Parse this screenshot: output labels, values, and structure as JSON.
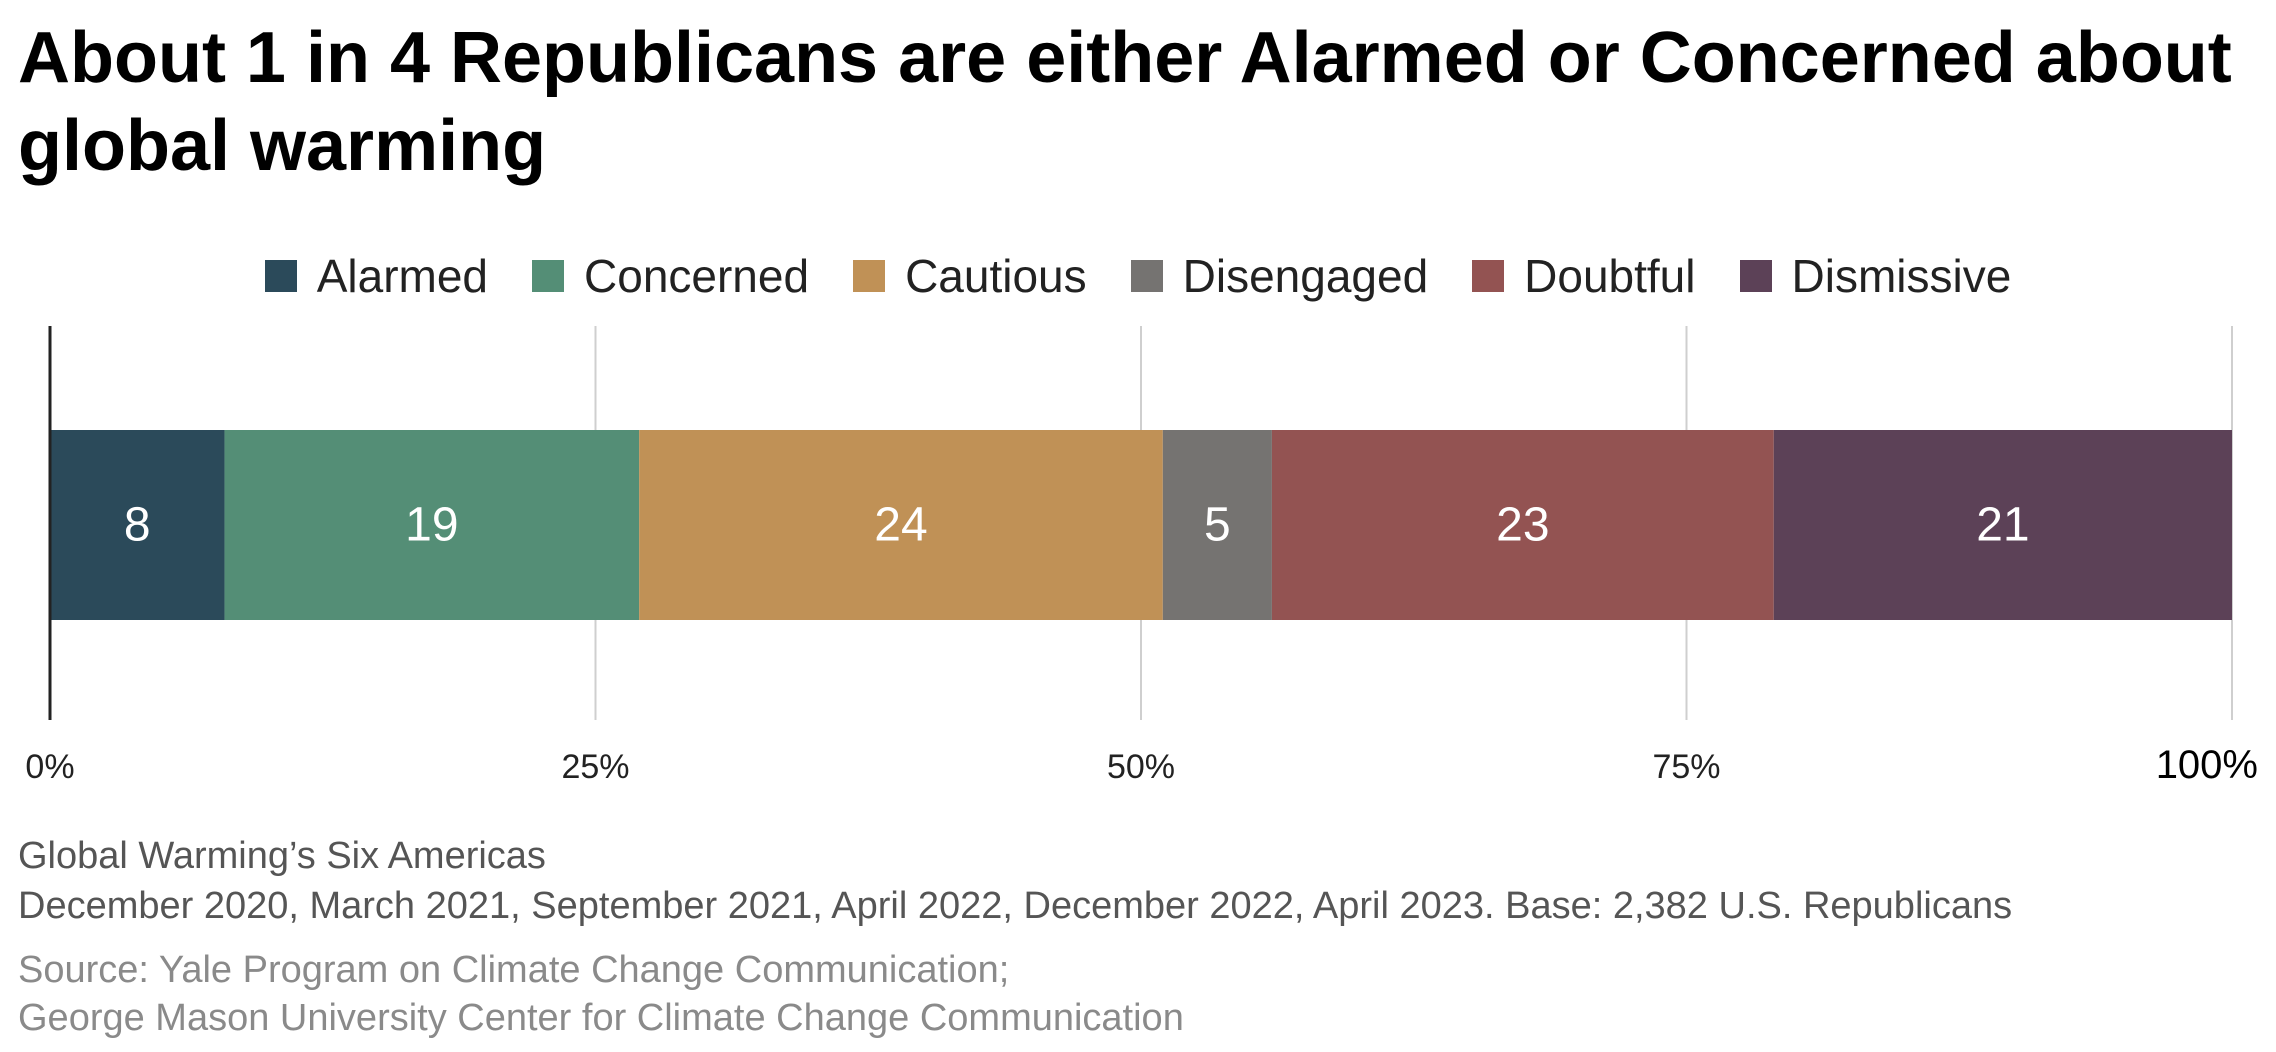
{
  "chart_data": {
    "type": "bar",
    "orientation": "horizontal",
    "stacked": true,
    "title": "About 1 in 4 Republicans are either Alarmed or Concerned about global warming",
    "series": [
      {
        "name": "Alarmed",
        "values": [
          8
        ],
        "color": "#2b4a5a"
      },
      {
        "name": "Concerned",
        "values": [
          19
        ],
        "color": "#548e76"
      },
      {
        "name": "Cautious",
        "values": [
          24
        ],
        "color": "#c09156"
      },
      {
        "name": "Disengaged",
        "values": [
          5
        ],
        "color": "#757371"
      },
      {
        "name": "Doubtful",
        "values": [
          23
        ],
        "color": "#935352"
      },
      {
        "name": "Dismissive",
        "values": [
          21
        ],
        "color": "#5c4157"
      }
    ],
    "xlim": [
      0,
      100
    ],
    "x_ticks": [
      "0%",
      "25%",
      "50%",
      "75%",
      "100%"
    ],
    "grid": true,
    "legend": "top-center"
  },
  "notes": {
    "line1": "Global Warming’s Six Americas",
    "line2": "December 2020, March 2021, September 2021, April 2022, December 2022, April 2023. Base: 2,382 U.S. Republicans",
    "line3": "Source: Yale Program on Climate Change Communication;",
    "line4": "George Mason University Center for Climate Change Communication"
  }
}
